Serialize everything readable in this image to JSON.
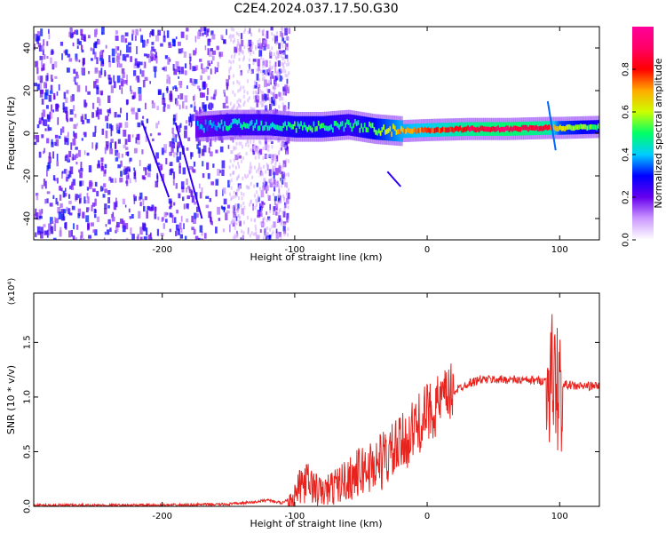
{
  "figure": {
    "title": "C2E4.2024.037.17.50.G30"
  },
  "chart_data": [
    {
      "type": "heatmap",
      "title": "C2E4.2024.037.17.50.G30",
      "xlabel": "Height of straight line (km)",
      "ylabel": "Frequency (Hz)",
      "xlim": [
        -297,
        130
      ],
      "ylim": [
        -50,
        50
      ],
      "xticks": [
        -200,
        -100,
        0,
        100
      ],
      "yticks": [
        -40,
        -20,
        0,
        20,
        40
      ],
      "grid": false,
      "colorbar": {
        "label": "Normalized spectral amplitude",
        "range": [
          0.0,
          1.0
        ],
        "ticks": [
          0.0,
          0.2,
          0.4,
          0.6,
          0.8
        ],
        "tick_labels": [
          "0.0",
          "0.2",
          "0.4",
          "0.6",
          "0.8"
        ],
        "colormap": [
          "#ffffff",
          "#cc99ff",
          "#6600ee",
          "#0000ff",
          "#00ccff",
          "#00ff66",
          "#ccff00",
          "#ffaa00",
          "#ff0000",
          "#ff0066",
          "#ff0099"
        ]
      },
      "band": {
        "points": [
          [
            -175,
            3
          ],
          [
            -150,
            4
          ],
          [
            -120,
            4
          ],
          [
            -100,
            3
          ],
          [
            -80,
            3
          ],
          [
            -60,
            4
          ],
          [
            -40,
            2
          ],
          [
            -20,
            1
          ],
          [
            0,
            1.5
          ],
          [
            30,
            2
          ],
          [
            60,
            2
          ],
          [
            90,
            2.5
          ],
          [
            100,
            2.5
          ],
          [
            130,
            3
          ]
        ],
        "amplitude": [
          0.35,
          0.45,
          0.45,
          0.5,
          0.5,
          0.45,
          0.55,
          0.7,
          0.75,
          0.85,
          0.9,
          0.85,
          0.6,
          0.5
        ]
      }
    },
    {
      "type": "line",
      "xlabel": "Height of straight line (km)",
      "ylabel": "SNR (10 * v/v)",
      "y_scale_note": "(x10⁴)",
      "xlim": [
        -297,
        130
      ],
      "ylim": [
        0,
        1.95
      ],
      "xticks": [
        -200,
        -100,
        0,
        100
      ],
      "yticks": [
        0.0,
        0.5,
        1.0,
        1.5
      ],
      "ytick_labels": [
        "0.0",
        "0.5",
        "1.0",
        "1.5"
      ],
      "grid": false,
      "color": "#e8231e",
      "x": [
        -297,
        -250,
        -200,
        -150,
        -130,
        -120,
        -110,
        -100,
        -95,
        -90,
        -80,
        -70,
        -60,
        -50,
        -40,
        -30,
        -20,
        -10,
        0,
        10,
        20,
        30,
        40,
        60,
        80,
        90,
        95,
        100,
        105,
        110,
        120,
        130
      ],
      "y": [
        0.01,
        0.01,
        0.01,
        0.02,
        0.04,
        0.06,
        0.03,
        0.1,
        0.2,
        0.22,
        0.12,
        0.18,
        0.25,
        0.32,
        0.38,
        0.45,
        0.55,
        0.7,
        0.85,
        0.95,
        1.05,
        1.12,
        1.16,
        1.16,
        1.15,
        1.15,
        1.2,
        1.05,
        1.12,
        1.1,
        1.1,
        1.1
      ]
    }
  ]
}
